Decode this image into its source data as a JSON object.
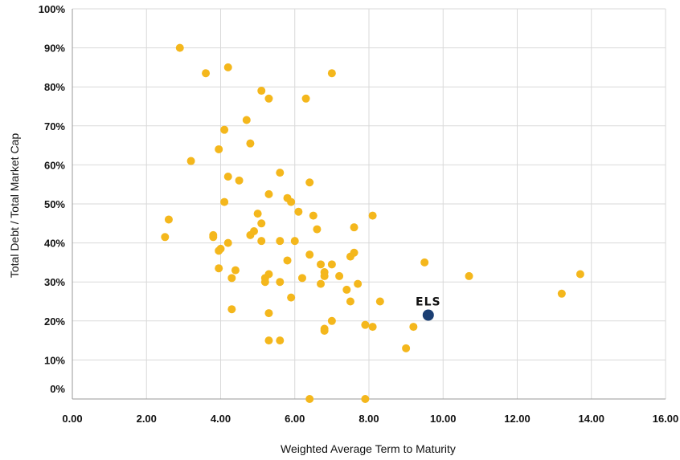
{
  "chart_data": {
    "type": "scatter",
    "xlabel": "Weighted Average Term to Maturity",
    "ylabel": "Total Debt / Total Market Cap",
    "xlim": [
      0,
      16
    ],
    "ylim": [
      0,
      100
    ],
    "x_ticks": [
      "0.00",
      "2.00",
      "4.00",
      "6.00",
      "8.00",
      "10.00",
      "12.00",
      "14.00",
      "16.00"
    ],
    "y_ticks": [
      "0%",
      "10%",
      "20%",
      "30%",
      "40%",
      "50%",
      "60%",
      "70%",
      "80%",
      "90%",
      "100%"
    ],
    "grid": true,
    "colors": {
      "points": "#F4B71C",
      "highlight": "#1B3F73",
      "grid": "#D9D9D9",
      "axis": "#999999"
    },
    "highlight": {
      "label": "ELS",
      "x": 9.6,
      "y": 21.5
    },
    "points": [
      {
        "x": 2.9,
        "y": 90
      },
      {
        "x": 4.2,
        "y": 85
      },
      {
        "x": 3.6,
        "y": 83.5
      },
      {
        "x": 7.0,
        "y": 83.5
      },
      {
        "x": 5.1,
        "y": 79
      },
      {
        "x": 5.3,
        "y": 77
      },
      {
        "x": 6.3,
        "y": 77
      },
      {
        "x": 4.7,
        "y": 71.5
      },
      {
        "x": 4.1,
        "y": 69
      },
      {
        "x": 4.8,
        "y": 65.5
      },
      {
        "x": 3.95,
        "y": 64
      },
      {
        "x": 3.2,
        "y": 61
      },
      {
        "x": 5.6,
        "y": 58
      },
      {
        "x": 4.2,
        "y": 57
      },
      {
        "x": 4.5,
        "y": 56
      },
      {
        "x": 6.4,
        "y": 55.5
      },
      {
        "x": 5.3,
        "y": 52.5
      },
      {
        "x": 5.8,
        "y": 51.5
      },
      {
        "x": 5.9,
        "y": 50.5
      },
      {
        "x": 4.1,
        "y": 50.5
      },
      {
        "x": 6.1,
        "y": 48
      },
      {
        "x": 5.0,
        "y": 47.5
      },
      {
        "x": 6.5,
        "y": 47
      },
      {
        "x": 8.1,
        "y": 47
      },
      {
        "x": 2.6,
        "y": 46
      },
      {
        "x": 5.1,
        "y": 45
      },
      {
        "x": 7.6,
        "y": 44
      },
      {
        "x": 6.6,
        "y": 43.5
      },
      {
        "x": 4.9,
        "y": 43
      },
      {
        "x": 4.8,
        "y": 42
      },
      {
        "x": 3.8,
        "y": 42
      },
      {
        "x": 3.8,
        "y": 41.5
      },
      {
        "x": 2.5,
        "y": 41.5
      },
      {
        "x": 5.1,
        "y": 40.5
      },
      {
        "x": 5.6,
        "y": 40.5
      },
      {
        "x": 6.0,
        "y": 40.5
      },
      {
        "x": 4.2,
        "y": 40
      },
      {
        "x": 4.0,
        "y": 38.5
      },
      {
        "x": 3.95,
        "y": 38
      },
      {
        "x": 7.6,
        "y": 37.5
      },
      {
        "x": 6.4,
        "y": 37
      },
      {
        "x": 7.5,
        "y": 36.5
      },
      {
        "x": 5.8,
        "y": 35.5
      },
      {
        "x": 9.5,
        "y": 35
      },
      {
        "x": 6.7,
        "y": 34.5
      },
      {
        "x": 7.0,
        "y": 34.5
      },
      {
        "x": 3.95,
        "y": 33.5
      },
      {
        "x": 4.4,
        "y": 33
      },
      {
        "x": 6.8,
        "y": 32.5
      },
      {
        "x": 6.8,
        "y": 31.5
      },
      {
        "x": 13.7,
        "y": 32
      },
      {
        "x": 5.3,
        "y": 32
      },
      {
        "x": 5.2,
        "y": 31
      },
      {
        "x": 7.2,
        "y": 31.5
      },
      {
        "x": 10.7,
        "y": 31.5
      },
      {
        "x": 4.3,
        "y": 31
      },
      {
        "x": 6.2,
        "y": 31
      },
      {
        "x": 5.2,
        "y": 30
      },
      {
        "x": 5.6,
        "y": 30
      },
      {
        "x": 6.7,
        "y": 29.5
      },
      {
        "x": 7.7,
        "y": 29.5
      },
      {
        "x": 7.4,
        "y": 28
      },
      {
        "x": 13.2,
        "y": 27
      },
      {
        "x": 5.9,
        "y": 26
      },
      {
        "x": 7.5,
        "y": 25
      },
      {
        "x": 8.3,
        "y": 25
      },
      {
        "x": 4.3,
        "y": 23
      },
      {
        "x": 5.3,
        "y": 22
      },
      {
        "x": 7.0,
        "y": 20
      },
      {
        "x": 7.9,
        "y": 19
      },
      {
        "x": 8.1,
        "y": 18.5
      },
      {
        "x": 9.2,
        "y": 18.5
      },
      {
        "x": 6.8,
        "y": 18
      },
      {
        "x": 6.8,
        "y": 17.5
      },
      {
        "x": 5.3,
        "y": 15
      },
      {
        "x": 5.6,
        "y": 15
      },
      {
        "x": 9.0,
        "y": 13
      },
      {
        "x": 6.4,
        "y": 0
      },
      {
        "x": 7.9,
        "y": 0
      }
    ]
  }
}
